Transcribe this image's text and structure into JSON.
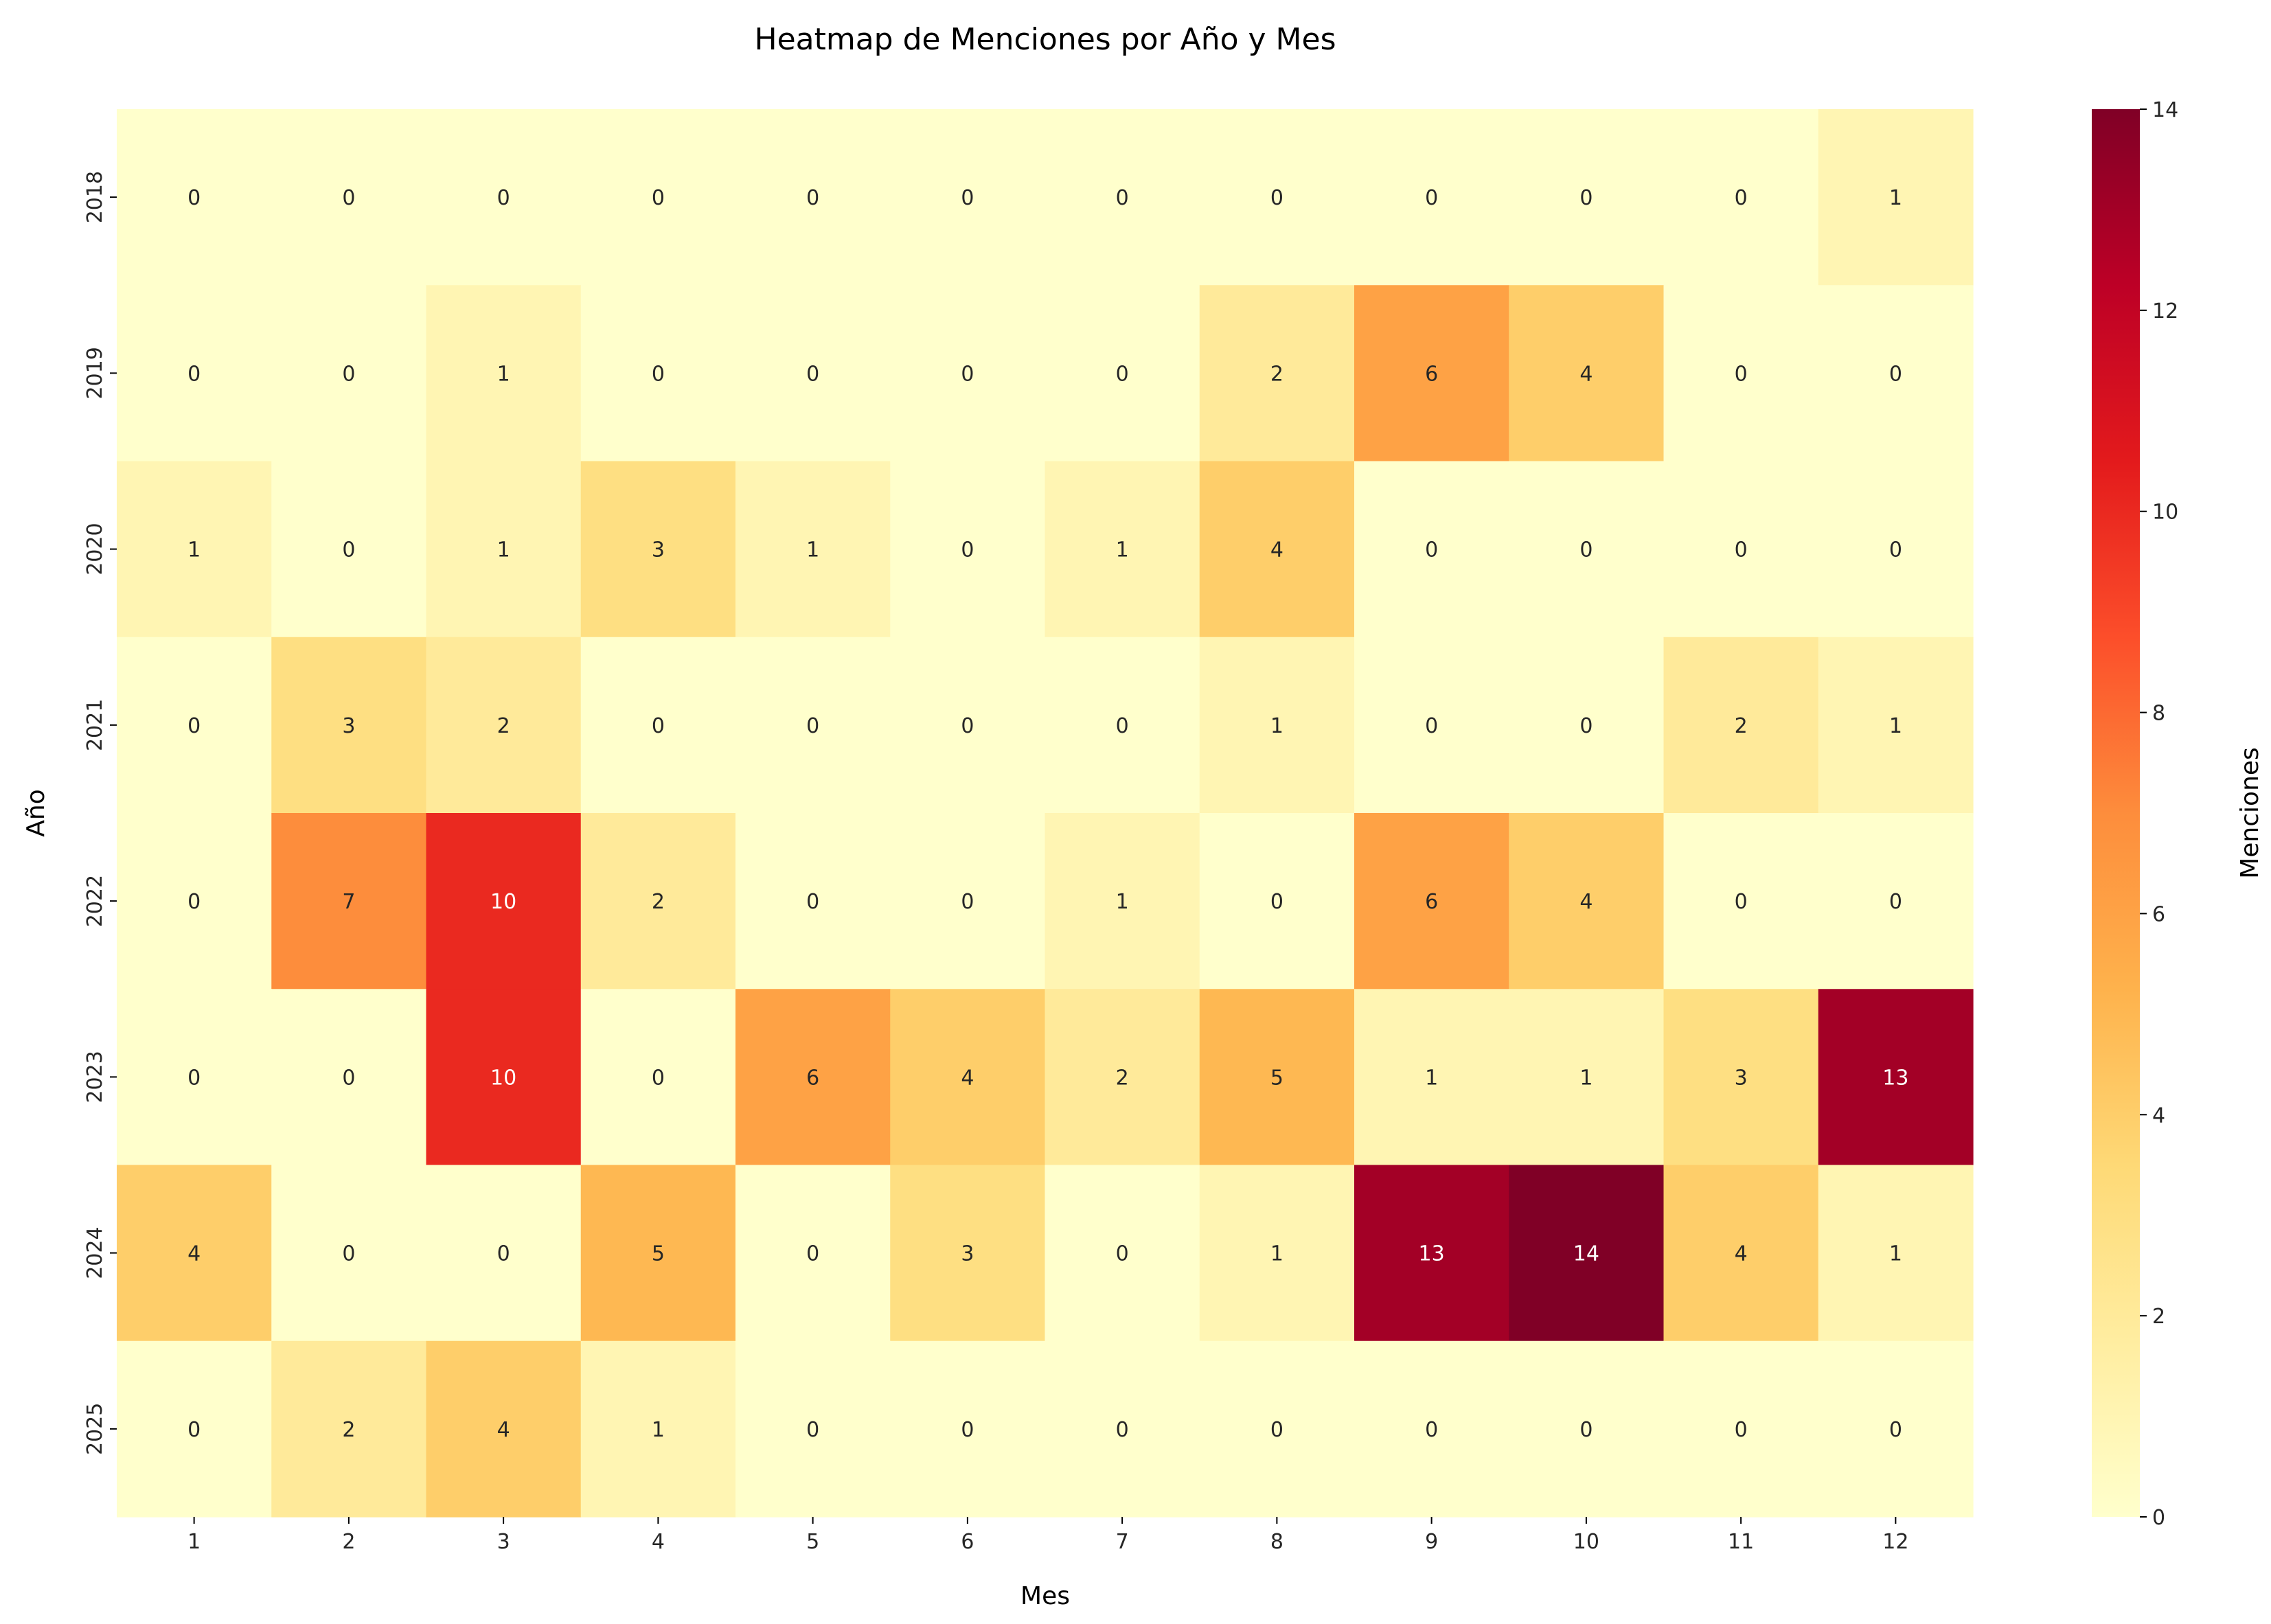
{
  "chart_data": {
    "type": "heatmap",
    "title": "Heatmap de Menciones por Año y Mes",
    "xlabel": "Mes",
    "ylabel": "Año",
    "colorbar_label": "Menciones",
    "colormap": "YlOrRd",
    "colormap_stops": [
      "#ffffcc",
      "#ffeda0",
      "#fed976",
      "#feb24c",
      "#fd8d3c",
      "#fc4e2a",
      "#e31a1c",
      "#bd0026",
      "#800026"
    ],
    "vmin": 0,
    "vmax": 14,
    "colorbar_ticks": [
      0,
      2,
      4,
      6,
      8,
      10,
      12,
      14
    ],
    "x": [
      "1",
      "2",
      "3",
      "4",
      "5",
      "6",
      "7",
      "8",
      "9",
      "10",
      "11",
      "12"
    ],
    "y": [
      "2018",
      "2019",
      "2020",
      "2021",
      "2022",
      "2023",
      "2024",
      "2025"
    ],
    "values": [
      [
        0,
        0,
        0,
        0,
        0,
        0,
        0,
        0,
        0,
        0,
        0,
        1
      ],
      [
        0,
        0,
        1,
        0,
        0,
        0,
        0,
        2,
        6,
        4,
        0,
        0
      ],
      [
        1,
        0,
        1,
        3,
        1,
        0,
        1,
        4,
        0,
        0,
        0,
        0
      ],
      [
        0,
        3,
        2,
        0,
        0,
        0,
        0,
        1,
        0,
        0,
        2,
        1
      ],
      [
        0,
        7,
        10,
        2,
        0,
        0,
        1,
        0,
        6,
        4,
        0,
        0
      ],
      [
        0,
        0,
        10,
        0,
        6,
        4,
        2,
        5,
        1,
        1,
        3,
        13
      ],
      [
        4,
        0,
        0,
        5,
        0,
        3,
        0,
        1,
        13,
        14,
        4,
        1
      ],
      [
        0,
        2,
        4,
        1,
        0,
        0,
        0,
        0,
        0,
        0,
        0,
        0
      ]
    ],
    "annotated": true,
    "legend": "colorbar-right"
  }
}
